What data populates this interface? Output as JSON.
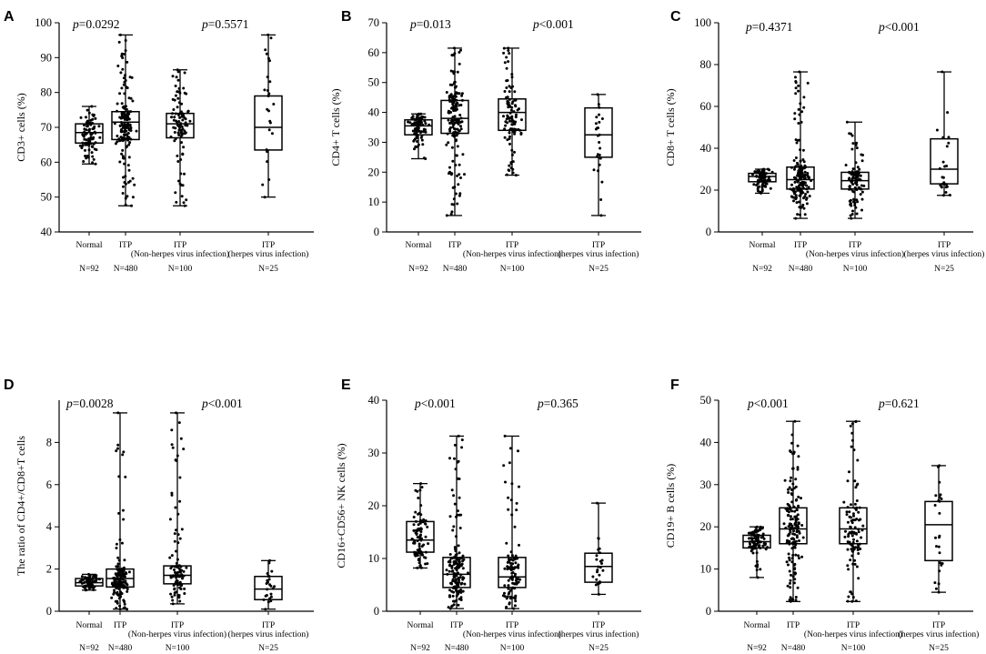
{
  "chart_data": [
    {
      "panel": "A",
      "type": "box",
      "ylabel": "CD3+ cells (%)",
      "ylim": [
        40,
        100
      ],
      "yticks": [
        40,
        50,
        60,
        70,
        80,
        90,
        100
      ],
      "categories": [
        {
          "label": "Normal",
          "label2": "",
          "n": "N=92"
        },
        {
          "label": "ITP",
          "label2": "",
          "n": "N=480"
        },
        {
          "label": "ITP",
          "label2": "(Non-herpes virus infection)",
          "n": "N=100"
        },
        {
          "label": "ITP",
          "label2": "(herpes virus infection)",
          "n": "N=25"
        }
      ],
      "boxes": [
        {
          "min": 59.5,
          "q1": 65.5,
          "median": 68.5,
          "q3": 71,
          "max": 76,
          "points": 92
        },
        {
          "min": 47.5,
          "q1": 66.5,
          "median": 71.5,
          "q3": 74.5,
          "max": 96.5,
          "points": 160
        },
        {
          "min": 47.5,
          "q1": 67,
          "median": 71,
          "q3": 74,
          "max": 86.5,
          "points": 100
        },
        {
          "min": 50,
          "q1": 63.5,
          "median": 70,
          "q3": 79,
          "max": 96.5,
          "points": 25
        }
      ],
      "pvalues": [
        {
          "text": "=0.0292",
          "between": [
            0,
            1
          ]
        },
        {
          "text": "=0.5571",
          "between": [
            2,
            3
          ]
        }
      ]
    },
    {
      "panel": "B",
      "type": "box",
      "ylabel": "CD4+ T cells (%)",
      "ylim": [
        0,
        70
      ],
      "yticks": [
        0,
        10,
        20,
        30,
        40,
        50,
        60,
        70
      ],
      "categories": [
        {
          "label": "Normal",
          "label2": "",
          "n": "N=92"
        },
        {
          "label": "ITP",
          "label2": "",
          "n": "N=480"
        },
        {
          "label": "ITP",
          "label2": "(Non-herpes virus infection)",
          "n": "N=100"
        },
        {
          "label": "ITP",
          "label2": "(herpes virus infection)",
          "n": "N=25"
        }
      ],
      "boxes": [
        {
          "min": 24.5,
          "q1": 32.5,
          "median": 35.5,
          "q3": 37.5,
          "max": 39.5,
          "points": 92
        },
        {
          "min": 5.5,
          "q1": 33,
          "median": 38,
          "q3": 44,
          "max": 61.5,
          "points": 160
        },
        {
          "min": 19,
          "q1": 34,
          "median": 40,
          "q3": 44.5,
          "max": 61.5,
          "points": 100
        },
        {
          "min": 5.5,
          "q1": 25,
          "median": 32.5,
          "q3": 41.5,
          "max": 46,
          "points": 25
        }
      ],
      "pvalues": [
        {
          "text": "=0.013",
          "between": [
            0,
            1
          ]
        },
        {
          "text": "<0.001",
          "between": [
            2,
            3
          ]
        }
      ]
    },
    {
      "panel": "C",
      "type": "box",
      "ylabel": "CD8+ T cells (%)",
      "ylim": [
        0,
        100
      ],
      "yticks": [
        0,
        20,
        40,
        60,
        80,
        100
      ],
      "categories": [
        {
          "label": "Normal",
          "label2": "",
          "n": "N=92"
        },
        {
          "label": "ITP",
          "label2": "",
          "n": "N=480"
        },
        {
          "label": "ITP",
          "label2": "(Non-herpes virus infection)",
          "n": "N=100"
        },
        {
          "label": "ITP",
          "label2": "(herpes virus infection)",
          "n": "N=25"
        }
      ],
      "boxes": [
        {
          "min": 18.5,
          "q1": 24,
          "median": 26.5,
          "q3": 28,
          "max": 30,
          "points": 92
        },
        {
          "min": 6.5,
          "q1": 20.5,
          "median": 25,
          "q3": 31,
          "max": 76.5,
          "points": 160
        },
        {
          "min": 6.5,
          "q1": 20.5,
          "median": 24.5,
          "q3": 28.5,
          "max": 52.5,
          "points": 100
        },
        {
          "min": 17.5,
          "q1": 23,
          "median": 30,
          "q3": 44.5,
          "max": 76.5,
          "points": 25
        }
      ],
      "pvalues": [
        {
          "text": "=0.4371",
          "between": [
            0,
            1
          ]
        },
        {
          "text": "<0.001",
          "between": [
            2,
            3
          ]
        }
      ]
    },
    {
      "panel": "D",
      "type": "box",
      "ylabel": "The ratio of CD4+/CD8+T cells",
      "ylim": [
        0,
        10
      ],
      "yticks": [
        0,
        2,
        4,
        6,
        8
      ],
      "categories": [
        {
          "label": "Normal",
          "label2": "",
          "n": "N=92"
        },
        {
          "label": "ITP",
          "label2": "",
          "n": "N=480"
        },
        {
          "label": "ITP",
          "label2": "(Non-herpes virus infection)",
          "n": "N=100"
        },
        {
          "label": "ITP",
          "label2": "(herpes virus infection)",
          "n": "N=25"
        }
      ],
      "boxes": [
        {
          "min": 1.0,
          "q1": 1.2,
          "median": 1.35,
          "q3": 1.55,
          "max": 1.75,
          "points": 92
        },
        {
          "min": 0.1,
          "q1": 1.15,
          "median": 1.55,
          "q3": 2.0,
          "max": 9.4,
          "points": 160
        },
        {
          "min": 0.35,
          "q1": 1.3,
          "median": 1.7,
          "q3": 2.15,
          "max": 9.4,
          "points": 100
        },
        {
          "min": 0.1,
          "q1": 0.55,
          "median": 1.05,
          "q3": 1.65,
          "max": 2.4,
          "points": 25
        }
      ],
      "pvalues": [
        {
          "text": "=0.0028",
          "between": [
            0,
            1
          ]
        },
        {
          "text": "<0.001",
          "between": [
            2,
            3
          ]
        }
      ]
    },
    {
      "panel": "E",
      "type": "box",
      "ylabel": "CD16+CD56+ NK cells (%)",
      "ylim": [
        0,
        40
      ],
      "yticks": [
        0,
        10,
        20,
        30,
        40
      ],
      "categories": [
        {
          "label": "Normal",
          "label2": "",
          "n": "N=92"
        },
        {
          "label": "ITP",
          "label2": "",
          "n": "N=480"
        },
        {
          "label": "ITP",
          "label2": "(Non-herpes virus infection)",
          "n": "N=100"
        },
        {
          "label": "ITP",
          "label2": "(herpes virus infection)",
          "n": "N=25"
        }
      ],
      "boxes": [
        {
          "min": 8.2,
          "q1": 11.2,
          "median": 13.5,
          "q3": 17,
          "max": 24.2,
          "points": 92
        },
        {
          "min": 0.5,
          "q1": 4.5,
          "median": 7,
          "q3": 10.2,
          "max": 33.2,
          "points": 160
        },
        {
          "min": 0.5,
          "q1": 4.5,
          "median": 6.5,
          "q3": 10.2,
          "max": 33.2,
          "points": 100
        },
        {
          "min": 3.2,
          "q1": 5.5,
          "median": 8.5,
          "q3": 11,
          "max": 20.5,
          "points": 25
        }
      ],
      "pvalues": [
        {
          "text": "<0.001",
          "between": [
            0,
            1
          ]
        },
        {
          "text": "=0.365",
          "between": [
            2,
            3
          ]
        }
      ]
    },
    {
      "panel": "F",
      "type": "box",
      "ylabel": "CD19+ B cells (%)",
      "ylim": [
        0,
        50
      ],
      "yticks": [
        0,
        10,
        20,
        30,
        40,
        50
      ],
      "categories": [
        {
          "label": "Normal",
          "label2": "",
          "n": "N=92"
        },
        {
          "label": "ITP",
          "label2": "",
          "n": "N=480"
        },
        {
          "label": "ITP",
          "label2": "(Non-herpes virus infection)",
          "n": "N=100"
        },
        {
          "label": "ITP",
          "label2": "(herpes virus infection)",
          "n": "N=25"
        }
      ],
      "boxes": [
        {
          "min": 8,
          "q1": 15,
          "median": 16.5,
          "q3": 18,
          "max": 20,
          "points": 92
        },
        {
          "min": 2.3,
          "q1": 16,
          "median": 19.5,
          "q3": 24.5,
          "max": 45,
          "points": 160
        },
        {
          "min": 2.3,
          "q1": 16,
          "median": 19.5,
          "q3": 24.5,
          "max": 45,
          "points": 100
        },
        {
          "min": 4.5,
          "q1": 12,
          "median": 20.5,
          "q3": 26,
          "max": 34.5,
          "points": 25
        }
      ],
      "pvalues": [
        {
          "text": "<0.001",
          "between": [
            0,
            1
          ]
        },
        {
          "text": "=0.621",
          "between": [
            2,
            3
          ]
        }
      ]
    }
  ],
  "p_symbol": "p"
}
